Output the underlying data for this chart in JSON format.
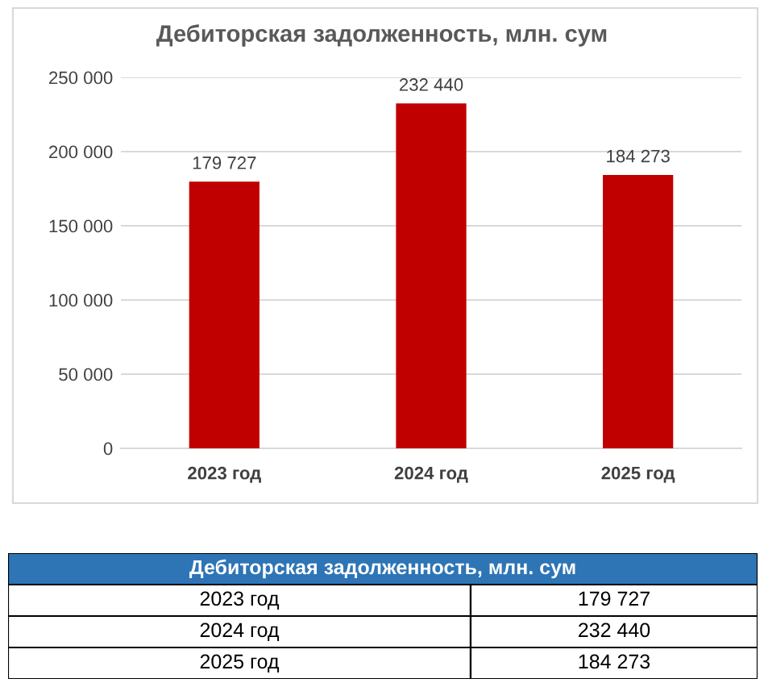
{
  "chart_data": {
    "type": "bar",
    "title": "Дебиторская задолженность, млн. сум",
    "categories": [
      "2023 год",
      "2024 год",
      "2025 год"
    ],
    "values": [
      179727,
      232440,
      184273
    ],
    "value_labels": [
      "179 727",
      "232 440",
      "184 273"
    ],
    "color": "#c00000",
    "ylim": [
      0,
      250000
    ],
    "yticks": [
      0,
      {
        "value": 50000,
        "label": "50 000"
      },
      {
        "value": 100000,
        "label": "100 000"
      },
      {
        "value": 150000,
        "label": "150 000"
      },
      {
        "value": 200000,
        "label": "200 000"
      },
      {
        "value": 250000,
        "label": "250 000"
      }
    ],
    "grid": "y",
    "annotations": [
      "Дебиторская задолженность, млн. сум"
    ]
  }
}
